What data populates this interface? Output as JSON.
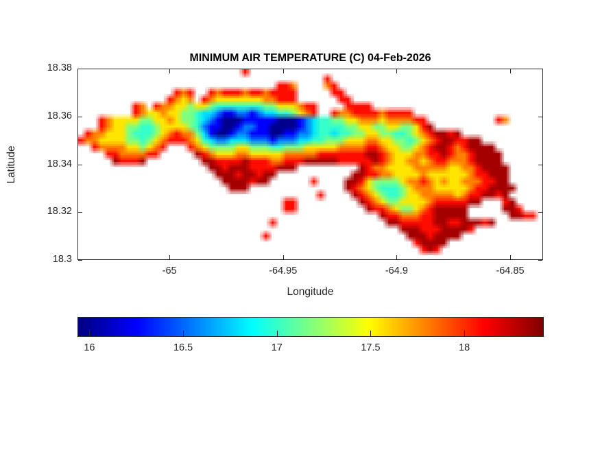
{
  "title": "MINIMUM AIR TEMPERATURE (C) 04-Feb-2026",
  "axes": {
    "xlabel": "Longitude",
    "ylabel": "Latitude",
    "x_ticks": [
      {
        "value": -65,
        "label": "-65"
      },
      {
        "value": -64.95,
        "label": "-64.95"
      },
      {
        "value": -64.9,
        "label": "-64.9"
      },
      {
        "value": -64.85,
        "label": "-64.85"
      }
    ],
    "y_ticks": [
      {
        "value": 18.38,
        "label": "18.38"
      },
      {
        "value": 18.36,
        "label": "18.36"
      },
      {
        "value": 18.34,
        "label": "18.34"
      },
      {
        "value": 18.32,
        "label": "18.32"
      },
      {
        "value": 18.3,
        "label": "18.3"
      }
    ]
  },
  "colorbar": {
    "ticks": [
      {
        "value": 16,
        "label": "16"
      },
      {
        "value": 16.5,
        "label": "16.5"
      },
      {
        "value": 17,
        "label": "17"
      },
      {
        "value": 17.5,
        "label": "17.5"
      },
      {
        "value": 18,
        "label": "18"
      }
    ]
  },
  "chart_data": {
    "type": "heatmap",
    "title": "MINIMUM AIR TEMPERATURE (C) 04-Feb-2026",
    "xlabel": "Longitude",
    "ylabel": "Latitude",
    "units": "C",
    "xlim": [
      -65.0405,
      -64.8355
    ],
    "ylim": [
      18.3,
      18.38
    ],
    "xticks": [
      -65,
      -64.95,
      -64.9,
      -64.85
    ],
    "yticks": [
      18.38,
      18.36,
      18.34,
      18.32,
      18.3
    ],
    "colormap": "jet",
    "color_domain": [
      15.94,
      18.42
    ],
    "colorbar_ticks": [
      16,
      16.5,
      17,
      17.5,
      18
    ],
    "grid_size": [
      68,
      28
    ],
    "grid_legend": "each cell is ~0.003 deg; chars map to deg C via grid_encoding; '.' = sea",
    "grid_encoding": {
      ".": null,
      "0": 15.97,
      "1": 16.25,
      "2": 16.55,
      "3": 16.8,
      "4": 17.0,
      "5": 17.18,
      "6": 17.55,
      "7": 17.8,
      "8": 18.08,
      "9": 18.33
    },
    "grid_rows": [
      "........................8...........................................",
      "....................................8...............................",
      ".............................887....78..............................",
      "..............878..8788878878888.....88.............................",
      ".............8767.87666666677888......88............................",
      "........87.877665665444444455666788....8888.........................",
      "........876676655433211221233445678..877888878888...................",
      "...876666556676554321000111110001234455667776777788..........87.....",
      "...8766554456666542110012211000012344445566556655689................",
      ".8776665444567877531001221110011223443445566554456789989............",
      "87766665545678887643223332221222334455566677665545678998899.........",
      "..87777665678...876555566555445556666677778876655678998789999.......",
      "....88777788.....987666776666677777888888899876667788987789999......",
      ".....98889........99888898887788899999888889876677678877789999......",
      "...................9989998888999.........9877666677777667789999.....",
      "....................999899899...........99887766667666666788999.....",
      ".....................9999899......8....998655556778767667778899.....",
      "......................999..............9876544456777666667889999....",
      "...................................8....98765445667777767889989.....",
      "..............................88.........987655666678888899...89....",
      "..............................88..........988765567899999.....998...",
      "............................................9887778899999......9988.",
      "............................8................9988888998899989.......",
      "...............................................99988899998..........",
      "...........................8....................99989999............",
      ".................................................89999..............",
      "..................................................898...............",
      "...................................................................."
    ]
  }
}
